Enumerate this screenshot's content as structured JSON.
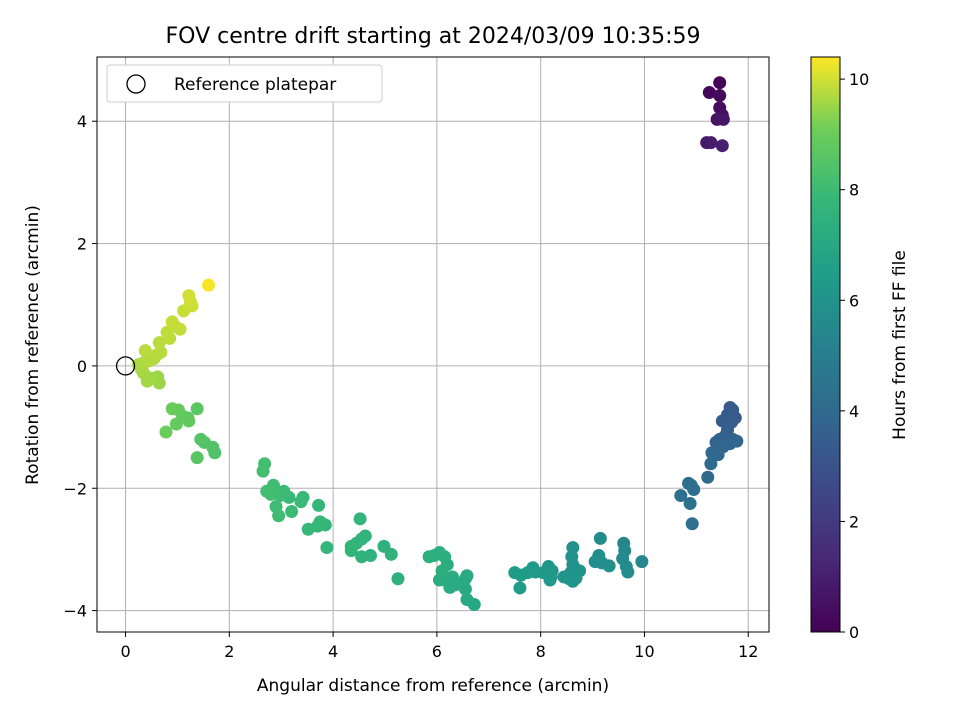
{
  "chart_data": {
    "type": "scatter",
    "title": "FOV centre drift starting at 2024/03/09 10:35:59",
    "xlabel": "Angular distance from reference (arcmin)",
    "ylabel": "Rotation from reference (arcmin)",
    "xlim": [
      -0.55,
      12.4
    ],
    "ylim": [
      -4.35,
      5.05
    ],
    "x_ticks": [
      0,
      2,
      4,
      6,
      8,
      10,
      12
    ],
    "y_ticks": [
      -4,
      -2,
      0,
      2,
      4
    ],
    "grid": true,
    "legend": {
      "position": "top-left",
      "entries": [
        "Reference platepar"
      ]
    },
    "reference_point": {
      "x": 0,
      "y": 0,
      "label": "Reference platepar"
    },
    "colorbar": {
      "label": "Hours from first FF file",
      "range": [
        0,
        10.4
      ],
      "ticks": [
        0,
        2,
        4,
        6,
        8,
        10
      ],
      "colormap": "viridis"
    },
    "points": [
      {
        "x": 11.45,
        "y": 4.63,
        "c": 0.1
      },
      {
        "x": 11.25,
        "y": 4.47,
        "c": 0.2
      },
      {
        "x": 11.45,
        "y": 4.42,
        "c": 0.3
      },
      {
        "x": 11.45,
        "y": 4.22,
        "c": 0.4
      },
      {
        "x": 11.5,
        "y": 4.1,
        "c": 0.5
      },
      {
        "x": 11.4,
        "y": 4.03,
        "c": 0.6
      },
      {
        "x": 11.52,
        "y": 4.03,
        "c": 0.7
      },
      {
        "x": 11.2,
        "y": 3.65,
        "c": 0.8
      },
      {
        "x": 11.28,
        "y": 3.65,
        "c": 0.9
      },
      {
        "x": 11.5,
        "y": 3.6,
        "c": 1.0
      },
      {
        "x": 11.65,
        "y": -0.68,
        "c": 3.2
      },
      {
        "x": 11.7,
        "y": -0.72,
        "c": 3.25
      },
      {
        "x": 11.6,
        "y": -0.8,
        "c": 3.3
      },
      {
        "x": 11.75,
        "y": -0.85,
        "c": 3.35
      },
      {
        "x": 11.5,
        "y": -0.9,
        "c": 3.4
      },
      {
        "x": 11.68,
        "y": -0.92,
        "c": 3.45
      },
      {
        "x": 11.6,
        "y": -1.05,
        "c": 3.5
      },
      {
        "x": 11.55,
        "y": -1.15,
        "c": 3.55
      },
      {
        "x": 11.7,
        "y": -1.2,
        "c": 3.6
      },
      {
        "x": 11.45,
        "y": -1.2,
        "c": 3.65
      },
      {
        "x": 11.38,
        "y": -1.25,
        "c": 3.7
      },
      {
        "x": 11.65,
        "y": -1.27,
        "c": 3.75
      },
      {
        "x": 11.78,
        "y": -1.23,
        "c": 3.8
      },
      {
        "x": 11.52,
        "y": -1.32,
        "c": 3.85
      },
      {
        "x": 11.3,
        "y": -1.42,
        "c": 3.9
      },
      {
        "x": 11.42,
        "y": -1.45,
        "c": 3.95
      },
      {
        "x": 11.28,
        "y": -1.6,
        "c": 4.0
      },
      {
        "x": 11.22,
        "y": -1.82,
        "c": 4.05
      },
      {
        "x": 10.85,
        "y": -1.92,
        "c": 4.1
      },
      {
        "x": 10.9,
        "y": -1.95,
        "c": 4.15
      },
      {
        "x": 10.95,
        "y": -2.02,
        "c": 4.2
      },
      {
        "x": 10.7,
        "y": -2.12,
        "c": 4.25
      },
      {
        "x": 10.88,
        "y": -2.25,
        "c": 4.3
      },
      {
        "x": 10.92,
        "y": -2.58,
        "c": 4.35
      },
      {
        "x": 9.95,
        "y": -3.2,
        "c": 5.4
      },
      {
        "x": 9.6,
        "y": -2.9,
        "c": 5.45
      },
      {
        "x": 9.62,
        "y": -3.02,
        "c": 5.5
      },
      {
        "x": 9.58,
        "y": -3.15,
        "c": 5.55
      },
      {
        "x": 9.65,
        "y": -3.28,
        "c": 5.6
      },
      {
        "x": 9.68,
        "y": -3.37,
        "c": 5.62
      },
      {
        "x": 9.15,
        "y": -2.82,
        "c": 5.65
      },
      {
        "x": 9.12,
        "y": -3.1,
        "c": 5.7
      },
      {
        "x": 9.05,
        "y": -3.2,
        "c": 5.75
      },
      {
        "x": 9.18,
        "y": -3.22,
        "c": 5.8
      },
      {
        "x": 9.32,
        "y": -3.27,
        "c": 5.85
      },
      {
        "x": 8.62,
        "y": -2.97,
        "c": 5.9
      },
      {
        "x": 8.6,
        "y": -3.12,
        "c": 5.92
      },
      {
        "x": 8.62,
        "y": -3.25,
        "c": 5.95
      },
      {
        "x": 8.75,
        "y": -3.35,
        "c": 5.98
      },
      {
        "x": 8.58,
        "y": -3.38,
        "c": 6.0
      },
      {
        "x": 8.45,
        "y": -3.45,
        "c": 6.02
      },
      {
        "x": 8.55,
        "y": -3.48,
        "c": 6.05
      },
      {
        "x": 8.68,
        "y": -3.47,
        "c": 6.08
      },
      {
        "x": 8.62,
        "y": -3.52,
        "c": 6.1
      },
      {
        "x": 8.15,
        "y": -3.28,
        "c": 6.15
      },
      {
        "x": 8.22,
        "y": -3.35,
        "c": 6.2
      },
      {
        "x": 8.05,
        "y": -3.38,
        "c": 6.22
      },
      {
        "x": 8.2,
        "y": -3.45,
        "c": 6.25
      },
      {
        "x": 8.18,
        "y": -3.5,
        "c": 6.28
      },
      {
        "x": 7.85,
        "y": -3.3,
        "c": 6.3
      },
      {
        "x": 7.9,
        "y": -3.37,
        "c": 6.32
      },
      {
        "x": 7.75,
        "y": -3.38,
        "c": 6.35
      },
      {
        "x": 7.5,
        "y": -3.38,
        "c": 6.4
      },
      {
        "x": 7.62,
        "y": -3.42,
        "c": 6.42
      },
      {
        "x": 7.6,
        "y": -3.63,
        "c": 6.45
      },
      {
        "x": 6.72,
        "y": -3.9,
        "c": 7.0
      },
      {
        "x": 6.58,
        "y": -3.82,
        "c": 7.02
      },
      {
        "x": 6.55,
        "y": -3.65,
        "c": 7.05
      },
      {
        "x": 6.5,
        "y": -3.55,
        "c": 7.08
      },
      {
        "x": 6.58,
        "y": -3.43,
        "c": 7.1
      },
      {
        "x": 6.55,
        "y": -3.48,
        "c": 7.12
      },
      {
        "x": 6.35,
        "y": -3.58,
        "c": 7.15
      },
      {
        "x": 6.25,
        "y": -3.62,
        "c": 7.18
      },
      {
        "x": 6.3,
        "y": -3.45,
        "c": 7.2
      },
      {
        "x": 6.15,
        "y": -3.5,
        "c": 7.22
      },
      {
        "x": 6.05,
        "y": -3.5,
        "c": 7.25
      },
      {
        "x": 6.1,
        "y": -3.35,
        "c": 7.28
      },
      {
        "x": 6.2,
        "y": -3.25,
        "c": 7.3
      },
      {
        "x": 6.15,
        "y": -3.12,
        "c": 7.32
      },
      {
        "x": 6.05,
        "y": -3.05,
        "c": 7.35
      },
      {
        "x": 5.95,
        "y": -3.1,
        "c": 7.38
      },
      {
        "x": 5.85,
        "y": -3.12,
        "c": 7.4
      },
      {
        "x": 5.25,
        "y": -3.48,
        "c": 7.45
      },
      {
        "x": 5.12,
        "y": -3.08,
        "c": 7.48
      },
      {
        "x": 4.98,
        "y": -2.95,
        "c": 7.5
      },
      {
        "x": 4.72,
        "y": -3.1,
        "c": 7.52
      },
      {
        "x": 4.55,
        "y": -3.12,
        "c": 7.55
      },
      {
        "x": 4.62,
        "y": -2.78,
        "c": 7.58
      },
      {
        "x": 4.55,
        "y": -2.83,
        "c": 7.6
      },
      {
        "x": 4.52,
        "y": -2.5,
        "c": 7.62
      },
      {
        "x": 4.45,
        "y": -2.9,
        "c": 7.65
      },
      {
        "x": 4.35,
        "y": -2.95,
        "c": 7.68
      },
      {
        "x": 4.35,
        "y": -3.02,
        "c": 7.7
      },
      {
        "x": 3.88,
        "y": -2.97,
        "c": 7.72
      },
      {
        "x": 3.85,
        "y": -2.6,
        "c": 7.75
      },
      {
        "x": 3.75,
        "y": -2.55,
        "c": 7.78
      },
      {
        "x": 3.72,
        "y": -2.28,
        "c": 7.8
      },
      {
        "x": 3.7,
        "y": -2.62,
        "c": 7.82
      },
      {
        "x": 3.52,
        "y": -2.67,
        "c": 7.85
      },
      {
        "x": 3.42,
        "y": -2.15,
        "c": 7.88
      },
      {
        "x": 3.38,
        "y": -2.22,
        "c": 7.9
      },
      {
        "x": 3.15,
        "y": -2.15,
        "c": 7.92
      },
      {
        "x": 3.2,
        "y": -2.38,
        "c": 7.95
      },
      {
        "x": 3.05,
        "y": -2.05,
        "c": 7.98
      },
      {
        "x": 2.98,
        "y": -2.12,
        "c": 8.0
      },
      {
        "x": 2.95,
        "y": -2.45,
        "c": 8.02
      },
      {
        "x": 2.9,
        "y": -2.3,
        "c": 8.05
      },
      {
        "x": 2.85,
        "y": -1.95,
        "c": 8.08
      },
      {
        "x": 2.8,
        "y": -2.1,
        "c": 8.1
      },
      {
        "x": 2.72,
        "y": -2.05,
        "c": 8.12
      },
      {
        "x": 2.68,
        "y": -1.6,
        "c": 8.15
      },
      {
        "x": 2.65,
        "y": -1.72,
        "c": 8.18
      },
      {
        "x": 1.72,
        "y": -1.42,
        "c": 8.4
      },
      {
        "x": 1.68,
        "y": -1.33,
        "c": 8.45
      },
      {
        "x": 1.52,
        "y": -1.25,
        "c": 8.5
      },
      {
        "x": 1.45,
        "y": -1.2,
        "c": 8.55
      },
      {
        "x": 1.38,
        "y": -1.5,
        "c": 8.6
      },
      {
        "x": 1.38,
        "y": -0.7,
        "c": 8.65
      },
      {
        "x": 1.2,
        "y": -0.85,
        "c": 8.7
      },
      {
        "x": 1.1,
        "y": -0.82,
        "c": 8.75
      },
      {
        "x": 1.22,
        "y": -0.9,
        "c": 8.8
      },
      {
        "x": 1.02,
        "y": -0.72,
        "c": 8.85
      },
      {
        "x": 0.98,
        "y": -0.95,
        "c": 8.9
      },
      {
        "x": 0.9,
        "y": -0.7,
        "c": 8.95
      },
      {
        "x": 0.78,
        "y": -1.08,
        "c": 9.0
      },
      {
        "x": 0.65,
        "y": -0.28,
        "c": 9.5
      },
      {
        "x": 0.62,
        "y": -0.18,
        "c": 9.52
      },
      {
        "x": 0.5,
        "y": -0.2,
        "c": 9.55
      },
      {
        "x": 0.42,
        "y": -0.25,
        "c": 9.58
      },
      {
        "x": 0.35,
        "y": -0.12,
        "c": 9.6
      },
      {
        "x": 0.3,
        "y": -0.05,
        "c": 9.62
      },
      {
        "x": 0.25,
        "y": 0.02,
        "c": 9.65
      },
      {
        "x": 0.35,
        "y": 0.05,
        "c": 9.68
      },
      {
        "x": 0.45,
        "y": 0.08,
        "c": 9.7
      },
      {
        "x": 0.55,
        "y": 0.12,
        "c": 9.72
      },
      {
        "x": 0.6,
        "y": 0.18,
        "c": 9.74
      },
      {
        "x": 0.68,
        "y": 0.22,
        "c": 9.76
      },
      {
        "x": 0.38,
        "y": 0.25,
        "c": 9.78
      },
      {
        "x": 0.65,
        "y": 0.38,
        "c": 9.8
      },
      {
        "x": 0.85,
        "y": 0.45,
        "c": 9.82
      },
      {
        "x": 0.8,
        "y": 0.55,
        "c": 9.84
      },
      {
        "x": 1.05,
        "y": 0.6,
        "c": 9.86
      },
      {
        "x": 0.95,
        "y": 0.65,
        "c": 9.88
      },
      {
        "x": 0.9,
        "y": 0.72,
        "c": 9.9
      },
      {
        "x": 1.12,
        "y": 0.9,
        "c": 9.92
      },
      {
        "x": 1.28,
        "y": 0.98,
        "c": 9.95
      },
      {
        "x": 1.25,
        "y": 1.05,
        "c": 9.98
      },
      {
        "x": 1.22,
        "y": 1.15,
        "c": 10.0
      },
      {
        "x": 1.6,
        "y": 1.32,
        "c": 10.35
      }
    ]
  }
}
